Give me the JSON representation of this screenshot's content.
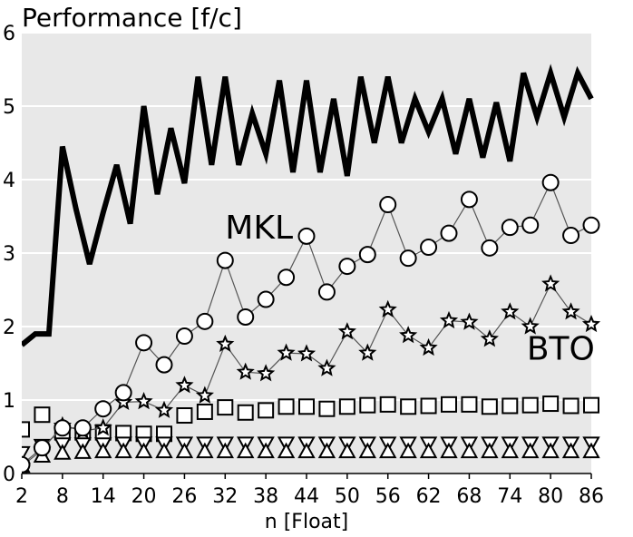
{
  "chart_data": {
    "type": "line",
    "title": "Performance [f/c]",
    "xlabel": "n [Float]",
    "ylabel": "",
    "xlim": [
      2,
      86
    ],
    "ylim": [
      0,
      6
    ],
    "xticks": [
      2,
      8,
      14,
      20,
      26,
      32,
      38,
      44,
      50,
      56,
      62,
      68,
      74,
      80,
      86
    ],
    "yticks": [
      0,
      1,
      2,
      3,
      4,
      5,
      6
    ],
    "grid": "horizontal",
    "background": "#e8e8e8",
    "annotations": [
      {
        "text": "MKL",
        "x": 37,
        "y": 3.2
      },
      {
        "text": "BTO",
        "x": 81.5,
        "y": 1.55
      }
    ],
    "series": [
      {
        "marker": "none",
        "style": "thick",
        "x": [
          2,
          4,
          6,
          8,
          10,
          12,
          14,
          16,
          18,
          20,
          22,
          24,
          26,
          28,
          30,
          32,
          34,
          36,
          38,
          40,
          42,
          44,
          46,
          48,
          50,
          52,
          54,
          56,
          58,
          60,
          62,
          64,
          66,
          68,
          70,
          72,
          74,
          76,
          78,
          80,
          82,
          84,
          86
        ],
        "values": [
          1.75,
          1.9,
          1.9,
          4.45,
          3.6,
          2.85,
          3.55,
          4.2,
          3.4,
          5.0,
          3.8,
          4.7,
          3.95,
          5.4,
          4.2,
          5.4,
          4.2,
          4.9,
          4.35,
          5.35,
          4.1,
          5.35,
          4.1,
          5.1,
          4.05,
          5.4,
          4.5,
          5.4,
          4.5,
          5.1,
          4.65,
          5.1,
          4.35,
          5.1,
          4.3,
          5.05,
          4.25,
          5.45,
          4.85,
          5.45,
          4.85,
          5.45,
          5.1
        ]
      },
      {
        "marker": "circle",
        "style": "thin",
        "x": [
          2,
          5,
          8,
          11,
          14,
          17,
          20,
          23,
          26,
          29,
          32,
          35,
          38,
          41,
          44,
          47,
          50,
          53,
          56,
          59,
          62,
          65,
          68,
          71,
          74,
          77,
          80,
          83,
          86
        ],
        "values": [
          0.12,
          0.35,
          0.62,
          0.62,
          0.88,
          1.1,
          1.78,
          1.48,
          1.87,
          2.07,
          2.9,
          2.13,
          2.37,
          2.67,
          3.23,
          2.47,
          2.82,
          2.98,
          3.66,
          2.93,
          3.08,
          3.27,
          3.73,
          3.07,
          3.35,
          3.38,
          3.96,
          3.24,
          3.38
        ]
      },
      {
        "marker": "star",
        "style": "thin",
        "x": [
          2,
          5,
          8,
          11,
          14,
          17,
          20,
          23,
          26,
          29,
          32,
          35,
          38,
          41,
          44,
          47,
          50,
          53,
          56,
          59,
          62,
          65,
          68,
          71,
          74,
          77,
          80,
          83,
          86
        ],
        "values": [
          0.1,
          0.32,
          0.65,
          0.58,
          0.62,
          0.97,
          0.98,
          0.86,
          1.2,
          1.06,
          1.76,
          1.38,
          1.36,
          1.64,
          1.63,
          1.43,
          1.93,
          1.64,
          2.23,
          1.88,
          1.71,
          2.08,
          2.06,
          1.83,
          2.2,
          2.0,
          2.58,
          2.2,
          2.03
        ]
      },
      {
        "marker": "square",
        "style": "markers",
        "x": [
          2,
          5,
          8,
          11,
          14,
          17,
          20,
          23,
          26,
          29,
          32,
          35,
          38,
          41,
          44,
          47,
          50,
          53,
          56,
          59,
          62,
          65,
          68,
          71,
          74,
          77,
          80,
          83,
          86
        ],
        "values": [
          0.6,
          0.8,
          0.56,
          0.56,
          0.56,
          0.55,
          0.54,
          0.54,
          0.79,
          0.84,
          0.9,
          0.83,
          0.86,
          0.91,
          0.91,
          0.88,
          0.91,
          0.93,
          0.94,
          0.91,
          0.92,
          0.94,
          0.94,
          0.91,
          0.92,
          0.93,
          0.95,
          0.92,
          0.93
        ]
      },
      {
        "marker": "triangle-down",
        "style": "markers",
        "x": [
          2,
          5,
          8,
          11,
          14,
          17,
          20,
          23,
          26,
          29,
          32,
          35,
          38,
          41,
          44,
          47,
          50,
          53,
          56,
          59,
          62,
          65,
          68,
          71,
          74,
          77,
          80,
          83,
          86
        ],
        "values": [
          0.28,
          0.38,
          0.4,
          0.4,
          0.4,
          0.41,
          0.41,
          0.41,
          0.41,
          0.41,
          0.41,
          0.41,
          0.41,
          0.41,
          0.41,
          0.41,
          0.41,
          0.41,
          0.41,
          0.41,
          0.41,
          0.41,
          0.41,
          0.41,
          0.41,
          0.41,
          0.41,
          0.41,
          0.41
        ]
      },
      {
        "marker": "triangle-up",
        "style": "markers",
        "x": [
          2,
          5,
          8,
          11,
          14,
          17,
          20,
          23,
          26,
          29,
          32,
          35,
          38,
          41,
          44,
          47,
          50,
          53,
          56,
          59,
          62,
          65,
          68,
          71,
          74,
          77,
          80,
          83,
          86
        ],
        "values": [
          0.1,
          0.24,
          0.28,
          0.29,
          0.3,
          0.3,
          0.3,
          0.3,
          0.3,
          0.3,
          0.3,
          0.3,
          0.3,
          0.3,
          0.3,
          0.3,
          0.3,
          0.3,
          0.3,
          0.3,
          0.3,
          0.3,
          0.3,
          0.3,
          0.3,
          0.3,
          0.3,
          0.3,
          0.3
        ]
      }
    ]
  }
}
